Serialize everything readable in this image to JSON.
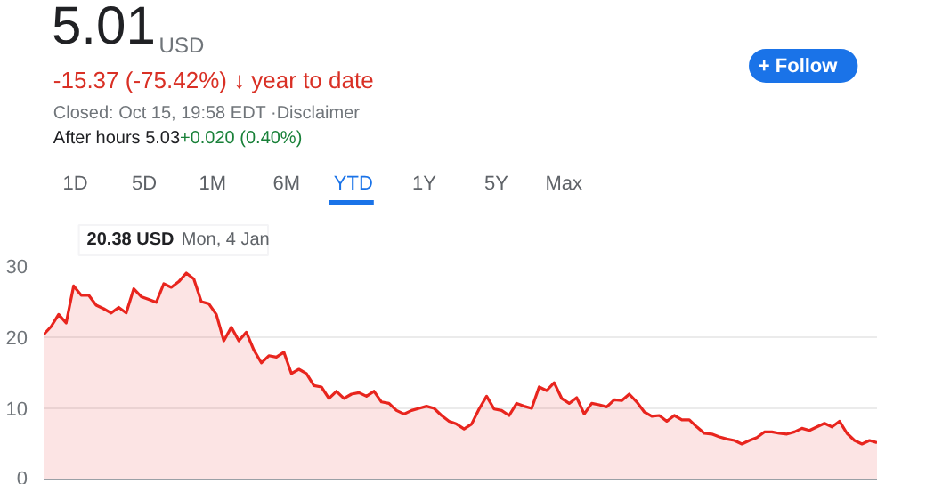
{
  "chart_data": {
    "type": "area",
    "categories": [
      null,
      null,
      null,
      null,
      null,
      null,
      null,
      null,
      null,
      null,
      null,
      null,
      null,
      null,
      null,
      null,
      null,
      null,
      null,
      null,
      null,
      null,
      null,
      null,
      null,
      null,
      null,
      null,
      null,
      null,
      null,
      null,
      null,
      null,
      null,
      null,
      null,
      null,
      null,
      null,
      null,
      null,
      null,
      null,
      null,
      null,
      null,
      null,
      null,
      null,
      null,
      null,
      null,
      null,
      null,
      null,
      null,
      null,
      null,
      null,
      null,
      null,
      null,
      null,
      null,
      null,
      null,
      null,
      null,
      null,
      null,
      null,
      null,
      null,
      null,
      null,
      null,
      null,
      null,
      null,
      null,
      null,
      null,
      null,
      null,
      null,
      null,
      null,
      null,
      null,
      null,
      null,
      null,
      null,
      null,
      null,
      null,
      null,
      null,
      null,
      null,
      null,
      null,
      null,
      null,
      null,
      null,
      null,
      null,
      null,
      null,
      null
    ],
    "series": [
      {
        "color": "#e8251e",
        "values": [
          20.38,
          21.5,
          23.2,
          22,
          27.2,
          25.9,
          25.9,
          24.5,
          24,
          23.4,
          24.2,
          23.4,
          26.8,
          25.7,
          25.3,
          24.9,
          27.5,
          27,
          27.8,
          29,
          28.2,
          25,
          24.7,
          23.2,
          19.5,
          21.4,
          19.5,
          20.7,
          18.2,
          16.4,
          17.4,
          17.2,
          17.9,
          14.9,
          15.5,
          14.9,
          13.2,
          13,
          11.4,
          12.4,
          11.4,
          12,
          12.2,
          11.7,
          12.4,
          10.9,
          10.7,
          9.7,
          9.2,
          9.7,
          10,
          10.3,
          10,
          9,
          8.2,
          7.8,
          7.1,
          7.8,
          9.9,
          11.7,
          9.9,
          9.7,
          9,
          10.7,
          10.3,
          10,
          13,
          12.5,
          13.6,
          11.4,
          10.7,
          11.5,
          9.2,
          10.7,
          10.5,
          10.2,
          11.2,
          11.1,
          12,
          10.9,
          9.5,
          8.9,
          9,
          8.2,
          9,
          8.4,
          8.4,
          7.4,
          6.5,
          6.4,
          6,
          5.7,
          5.5,
          5,
          5.5,
          5.9,
          6.7,
          6.7,
          6.5,
          6.4,
          6.7,
          7.2,
          6.9,
          7.4,
          7.9,
          7.4,
          8.2,
          6.5,
          5.5,
          5,
          5.5,
          5.2
        ]
      }
    ],
    "ylim": [
      0,
      30
    ],
    "yticks": [
      0,
      10,
      20,
      30
    ],
    "grid": "y",
    "annotations": [
      "5.01",
      "USD",
      "-15.37 (-75.42%) ↓ year to date",
      "Closed: Oct 15, 19:58 EDT ·Disclaimer",
      "After hours 5.03",
      "+0.020 (0.40%)",
      "1D",
      "5D",
      "1M",
      "6M",
      "YTD",
      "1Y",
      "5Y",
      "Max",
      "+ Follow",
      "20.38 USD",
      "Mon, 4 Jan"
    ]
  }
}
